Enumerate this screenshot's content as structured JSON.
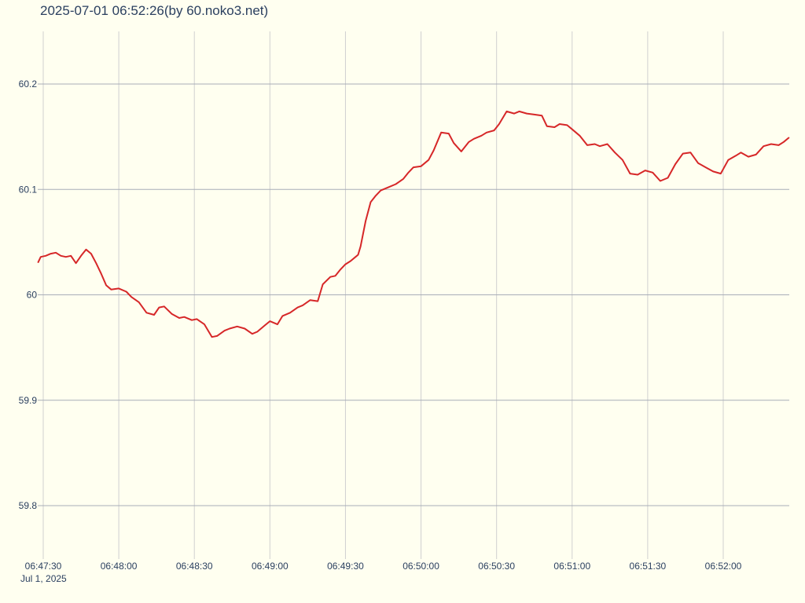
{
  "page": {
    "title": "2025-07-01 06:52:26(by 60.noko3.net)",
    "x_date_label": "Jul 1, 2025"
  },
  "colors": {
    "background": "#fffff0",
    "line": "#d62728",
    "text": "#2a3f5f",
    "grid_vertical": "#d0d0d0",
    "grid_horizontal": "#a8adb8"
  },
  "chart_data": {
    "type": "line",
    "title": "2025-07-01 06:52:26(by 60.noko3.net)",
    "xlabel": "",
    "ylabel": "",
    "x_range": [
      "06:47:30",
      "06:52:26"
    ],
    "ylim": [
      59.75,
      60.25
    ],
    "grid": true,
    "x_ticks": [
      "06:47:30",
      "06:48:00",
      "06:48:30",
      "06:49:00",
      "06:49:30",
      "06:50:00",
      "06:50:30",
      "06:51:00",
      "06:51:30",
      "06:52:00"
    ],
    "y_ticks": [
      59.8,
      59.9,
      60,
      60.1,
      60.2
    ],
    "y_tick_labels": [
      "59.8",
      "59.9",
      "60",
      "60.1",
      "60.2"
    ],
    "series": [
      {
        "color": "#d62728",
        "x": [
          "06:47:28",
          "06:47:29",
          "06:47:31",
          "06:47:33",
          "06:47:35",
          "06:47:37",
          "06:47:39",
          "06:47:41",
          "06:47:43",
          "06:47:45",
          "06:47:47",
          "06:47:49",
          "06:47:51",
          "06:47:53",
          "06:47:55",
          "06:47:57",
          "06:48:00",
          "06:48:03",
          "06:48:05",
          "06:48:08",
          "06:48:11",
          "06:48:14",
          "06:48:16",
          "06:48:18",
          "06:48:21",
          "06:48:24",
          "06:48:26",
          "06:48:29",
          "06:48:31",
          "06:48:34",
          "06:48:37",
          "06:48:39",
          "06:48:42",
          "06:48:44",
          "06:48:47",
          "06:48:50",
          "06:48:53",
          "06:48:55",
          "06:48:58",
          "06:49:00",
          "06:49:03",
          "06:49:05",
          "06:49:08",
          "06:49:11",
          "06:49:13",
          "06:49:16",
          "06:49:19",
          "06:49:21",
          "06:49:24",
          "06:49:26",
          "06:49:28",
          "06:49:30",
          "06:49:32",
          "06:49:34",
          "06:49:35",
          "06:49:36",
          "06:49:38",
          "06:49:40",
          "06:49:42",
          "06:49:44",
          "06:49:47",
          "06:49:50",
          "06:49:53",
          "06:49:55",
          "06:49:57",
          "06:50:00",
          "06:50:03",
          "06:50:05",
          "06:50:08",
          "06:50:11",
          "06:50:13",
          "06:50:16",
          "06:50:19",
          "06:50:21",
          "06:50:24",
          "06:50:26",
          "06:50:29",
          "06:50:31",
          "06:50:34",
          "06:50:37",
          "06:50:39",
          "06:50:42",
          "06:50:45",
          "06:50:48",
          "06:50:50",
          "06:50:53",
          "06:50:55",
          "06:50:58",
          "06:51:00",
          "06:51:03",
          "06:51:06",
          "06:51:09",
          "06:51:11",
          "06:51:14",
          "06:51:17",
          "06:51:20",
          "06:51:23",
          "06:51:26",
          "06:51:29",
          "06:51:32",
          "06:51:35",
          "06:51:38",
          "06:51:41",
          "06:51:44",
          "06:51:47",
          "06:51:50",
          "06:51:53",
          "06:51:56",
          "06:51:59",
          "06:52:02",
          "06:52:05",
          "06:52:07",
          "06:52:10",
          "06:52:13",
          "06:52:16",
          "06:52:19",
          "06:52:22",
          "06:52:24",
          "06:52:26"
        ],
        "y": [
          60.031,
          60.036,
          60.037,
          60.039,
          60.04,
          60.037,
          60.036,
          60.037,
          60.03,
          60.037,
          60.043,
          60.039,
          60.03,
          60.02,
          60.009,
          60.005,
          60.006,
          60.003,
          59.998,
          59.993,
          59.983,
          59.981,
          59.988,
          59.989,
          59.982,
          59.978,
          59.979,
          59.976,
          59.977,
          59.972,
          59.96,
          59.961,
          59.966,
          59.968,
          59.97,
          59.968,
          59.963,
          59.965,
          59.971,
          59.975,
          59.972,
          59.98,
          59.983,
          59.988,
          59.99,
          59.995,
          59.994,
          60.01,
          60.017,
          60.018,
          60.024,
          60.029,
          60.032,
          60.036,
          60.038,
          60.046,
          60.07,
          60.088,
          60.094,
          60.099,
          60.102,
          60.105,
          60.11,
          60.116,
          60.121,
          60.122,
          60.128,
          60.137,
          60.154,
          60.153,
          60.144,
          60.136,
          60.145,
          60.148,
          60.151,
          60.154,
          60.156,
          60.162,
          60.174,
          60.172,
          60.174,
          60.172,
          60.171,
          60.17,
          60.16,
          60.159,
          60.162,
          60.161,
          60.157,
          60.151,
          60.142,
          60.143,
          60.141,
          60.143,
          60.135,
          60.128,
          60.115,
          60.114,
          60.118,
          60.116,
          60.108,
          60.111,
          60.124,
          60.134,
          60.135,
          60.125,
          60.121,
          60.117,
          60.115,
          60.128,
          60.132,
          60.135,
          60.131,
          60.133,
          60.141,
          60.143,
          60.142,
          60.145,
          60.149
        ]
      }
    ]
  }
}
